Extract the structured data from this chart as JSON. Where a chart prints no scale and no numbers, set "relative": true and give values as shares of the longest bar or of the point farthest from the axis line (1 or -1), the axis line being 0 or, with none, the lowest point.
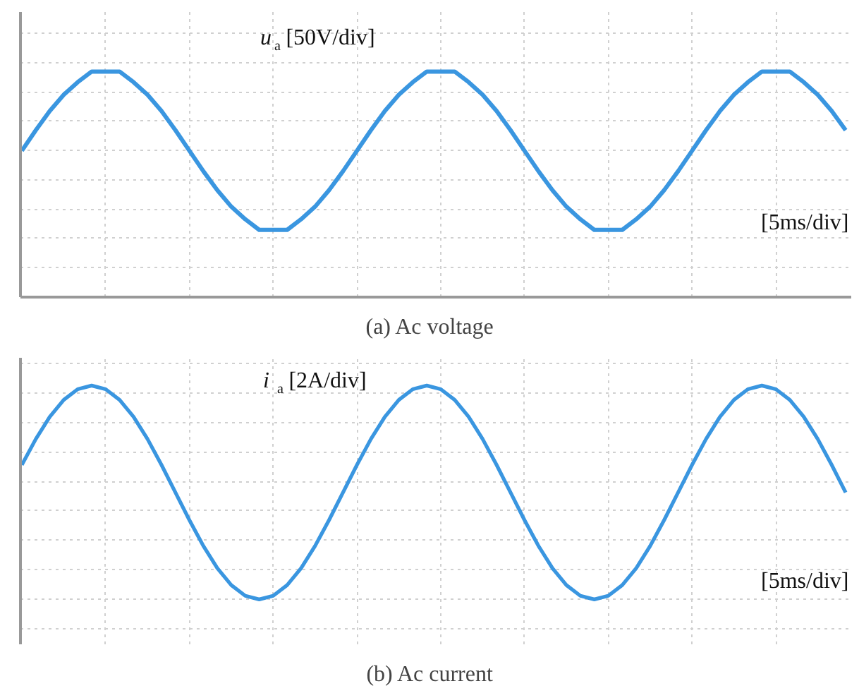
{
  "chart_data": [
    {
      "type": "line",
      "title": "(a)   Ac voltage",
      "relative": true,
      "grid": true,
      "tick_labels": false,
      "marker": "none",
      "line_style": "solid",
      "categories": [
        null,
        null,
        null,
        null,
        null,
        null,
        null,
        null,
        null,
        null,
        null,
        null,
        null,
        null,
        null,
        null,
        null,
        null,
        null,
        null,
        null,
        null,
        null,
        null,
        null,
        null,
        null,
        null,
        null,
        null,
        null,
        null,
        null,
        null,
        null,
        null,
        null,
        null,
        null,
        null,
        null,
        null,
        null,
        null,
        null,
        null,
        null,
        null,
        null,
        null,
        null,
        null,
        null,
        null,
        null,
        null,
        null,
        null,
        null,
        null
      ],
      "series": [
        {
          "color": "#3a96e0",
          "values": [
            0.649,
            0.74,
            0.825,
            0.897,
            0.953,
            1,
            1,
            1,
            0.953,
            0.897,
            0.825,
            0.74,
            0.649,
            0.558,
            0.474,
            0.401,
            0.345,
            0.298,
            0.298,
            0.298,
            0.345,
            0.401,
            0.474,
            0.558,
            0.649,
            0.74,
            0.825,
            0.897,
            0.953,
            1,
            1,
            1,
            0.953,
            0.897,
            0.825,
            0.74,
            0.649,
            0.558,
            0.474,
            0.401,
            0.345,
            0.298,
            0.298,
            0.298,
            0.345,
            0.401,
            0.474,
            0.558,
            0.649,
            0.74,
            0.825,
            0.897,
            0.953,
            1,
            1,
            1,
            0.953,
            0.897,
            0.825,
            0.74
          ]
        }
      ],
      "annotations": [
        "u$_{a}$ [50V/div]",
        "[5ms/div]"
      ]
    },
    {
      "type": "line",
      "title": "(b)   Ac current",
      "relative": true,
      "grid": true,
      "tick_labels": false,
      "marker": "none",
      "line_style": "solid",
      "categories": [
        null,
        null,
        null,
        null,
        null,
        null,
        null,
        null,
        null,
        null,
        null,
        null,
        null,
        null,
        null,
        null,
        null,
        null,
        null,
        null,
        null,
        null,
        null,
        null,
        null,
        null,
        null,
        null,
        null,
        null,
        null,
        null,
        null,
        null,
        null,
        null,
        null,
        null,
        null,
        null,
        null,
        null,
        null,
        null,
        null,
        null,
        null,
        null,
        null,
        null,
        null,
        null,
        null,
        null,
        null,
        null,
        null,
        null,
        null,
        null
      ],
      "series": [
        {
          "color": "#3a96e0",
          "values": [
            0.629,
            0.75,
            0.854,
            0.933,
            0.983,
            1,
            0.983,
            0.933,
            0.854,
            0.75,
            0.629,
            0.5,
            0.371,
            0.25,
            0.146,
            0.067,
            0.017,
            0,
            0.017,
            0.067,
            0.146,
            0.25,
            0.371,
            0.5,
            0.629,
            0.75,
            0.854,
            0.933,
            0.983,
            1,
            0.983,
            0.933,
            0.854,
            0.75,
            0.629,
            0.5,
            0.371,
            0.25,
            0.146,
            0.067,
            0.017,
            0,
            0.017,
            0.067,
            0.146,
            0.25,
            0.371,
            0.5,
            0.629,
            0.75,
            0.854,
            0.933,
            0.983,
            1,
            0.983,
            0.933,
            0.854,
            0.75,
            0.629,
            0.5
          ]
        }
      ],
      "annotations": [
        "i$_{a}$ [2A/div]",
        "[5ms/div]"
      ]
    }
  ]
}
